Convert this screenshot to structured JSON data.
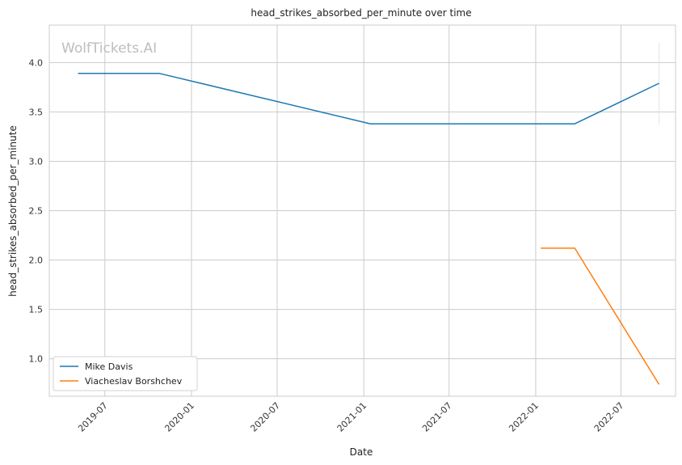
{
  "chart_data": {
    "type": "line",
    "title": "head_strikes_absorbed_per_minute over time",
    "xlabel": "Date",
    "ylabel": "head_strikes_absorbed_per_minute",
    "watermark": "WolfTickets.AI",
    "xlim": [
      "2019-03-05",
      "2022-10-25"
    ],
    "ylim": [
      0.62,
      4.38
    ],
    "x_ticks": [
      {
        "date": "2019-07-01",
        "label": "2019-07"
      },
      {
        "date": "2020-01-01",
        "label": "2020-01"
      },
      {
        "date": "2020-07-01",
        "label": "2020-07"
      },
      {
        "date": "2021-01-01",
        "label": "2021-01"
      },
      {
        "date": "2021-07-01",
        "label": "2021-07"
      },
      {
        "date": "2022-01-01",
        "label": "2022-01"
      },
      {
        "date": "2022-07-01",
        "label": "2022-07"
      }
    ],
    "y_ticks": [
      {
        "value": 1.0,
        "label": "1.0"
      },
      {
        "value": 1.5,
        "label": "1.5"
      },
      {
        "value": 2.0,
        "label": "2.0"
      },
      {
        "value": 2.5,
        "label": "2.5"
      },
      {
        "value": 3.0,
        "label": "3.0"
      },
      {
        "value": 3.5,
        "label": "3.5"
      },
      {
        "value": 4.0,
        "label": "4.0"
      }
    ],
    "grid": true,
    "legend_position": "lower-left",
    "series": [
      {
        "name": "Mike Davis",
        "color": "#1f77b4",
        "points": [
          {
            "x": "2019-05-05",
            "y": 3.89
          },
          {
            "x": "2019-10-25",
            "y": 3.89
          },
          {
            "x": "2021-01-15",
            "y": 3.38
          },
          {
            "x": "2022-03-25",
            "y": 3.38
          },
          {
            "x": "2022-09-20",
            "y": 3.79
          }
        ]
      },
      {
        "name": "Viacheslav Borshchev",
        "color": "#ff7f0e",
        "points": [
          {
            "x": "2022-01-12",
            "y": 2.12
          },
          {
            "x": "2022-03-25",
            "y": 2.12
          },
          {
            "x": "2022-09-20",
            "y": 0.74
          }
        ]
      }
    ],
    "error_bar": {
      "x": "2022-09-20",
      "low": 3.37,
      "high": 4.2,
      "color": "#d9e8e1"
    }
  }
}
